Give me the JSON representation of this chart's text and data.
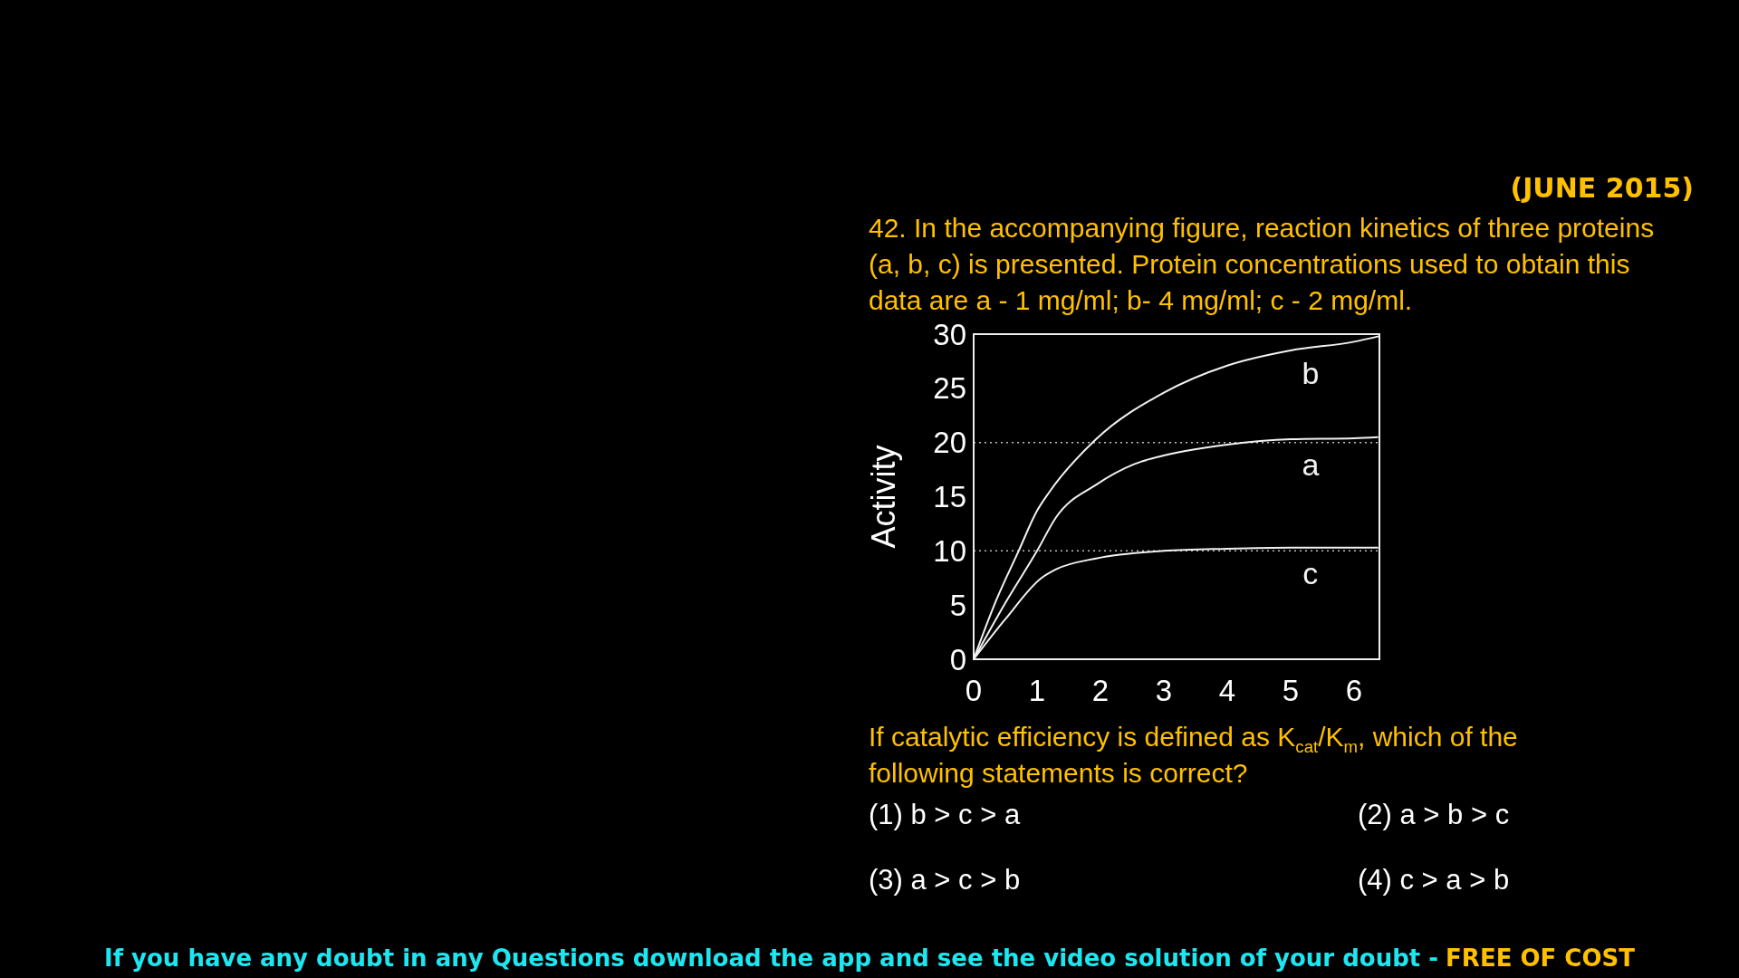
{
  "chart_data": {
    "type": "line",
    "ylabel": "Activity",
    "xlim": [
      0,
      6.4
    ],
    "xticks": [
      0,
      1,
      2,
      3,
      4,
      5,
      6
    ],
    "ylim": [
      0,
      30
    ],
    "yticks": [
      0,
      5,
      10,
      15,
      20,
      25,
      30
    ],
    "line_style": "solid",
    "series": [
      {
        "name": "b",
        "color": "#f2f2f2",
        "x": [
          0,
          0.36,
          0.71,
          1,
          1.19,
          1.93,
          3,
          4,
          5,
          6,
          6.39
        ],
        "values": [
          0,
          5.5,
          10,
          13.7,
          15.4,
          20.3,
          24.6,
          27.1,
          28.5,
          29.3,
          29.8
        ]
      },
      {
        "name": "a",
        "color": "#f2f2f2",
        "x": [
          0,
          0.5,
          1,
          1.3,
          1.93,
          2.53,
          3,
          4,
          5,
          6,
          6.37
        ],
        "values": [
          0,
          5.2,
          10,
          13.1,
          16.1,
          18,
          18.8,
          19.8,
          20.3,
          20.4,
          20.5
        ]
      },
      {
        "name": "c",
        "color": "#f2f2f2",
        "x": [
          0,
          0.5,
          1.07,
          1.3,
          1.93,
          3,
          4,
          5,
          6,
          6.37
        ],
        "values": [
          0,
          3.7,
          7.5,
          8.3,
          9.3,
          10,
          10.2,
          10.3,
          10.3,
          10.3
        ]
      }
    ],
    "ref_lines": [
      {
        "axis": "y",
        "value": 20,
        "color": "#bdbdbd",
        "line_style": "dotted"
      },
      {
        "axis": "y",
        "value": 10,
        "color": "#bdbdbd",
        "line_style": "dotted"
      }
    ],
    "annotations": [
      "(JUNE 2015)",
      "42. In the accompanying figure, reaction kinetics of three proteins (a, b, c) is presented. Protein concentrations used to obtain this data are a - 1 mg/ml; b- 4 mg/ml; c - 2 mg/ml.",
      "If catalytic efficiency is defined as K$_{cat}$/K$_{m}$, which of the following statements is correct?",
      "(1) b > c > a",
      "(2) a > b > c",
      "(3) a > c > b",
      "(4) c > a > b",
      "If you have any doubt in any Questions download the app and see the video solution of your doubt -",
      "FREE OF COST"
    ]
  }
}
